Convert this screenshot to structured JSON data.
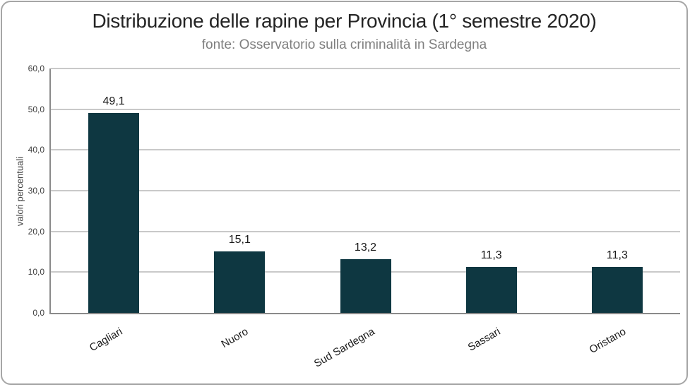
{
  "window": {
    "background_color": "#ffffff",
    "border_color": "#a6a6a6"
  },
  "chart_data": {
    "type": "bar",
    "title": "Distribuzione delle rapine per Provincia (1° semestre 2020)",
    "subtitle": "fonte: Osservatorio sulla criminalità in Sardegna",
    "categories": [
      "Cagliari",
      "Nuoro",
      "Sud Sardegna",
      "Sassari",
      "Oristano"
    ],
    "values": [
      49.1,
      15.1,
      13.2,
      11.3,
      11.3
    ],
    "data_labels": [
      "49,1",
      "15,1",
      "13,2",
      "11,3",
      "11,3"
    ],
    "xlabel": "",
    "ylabel": "valori percentuali",
    "ylim": [
      0,
      60
    ],
    "ytick_step": 10,
    "ytick_labels": [
      "0,0",
      "10,0",
      "20,0",
      "30,0",
      "40,0",
      "50,0",
      "60,0"
    ],
    "grid": true,
    "legend": "none",
    "x_label_rotation_deg": -30,
    "colors": {
      "bar": "#0e3741",
      "gridline": "#c9c9c9",
      "axis_line": "#8a8a8a",
      "title": "#242424",
      "subtitle": "#7f7f7f",
      "tick_label": "#404040",
      "data_label": "#1a1a1a"
    }
  }
}
